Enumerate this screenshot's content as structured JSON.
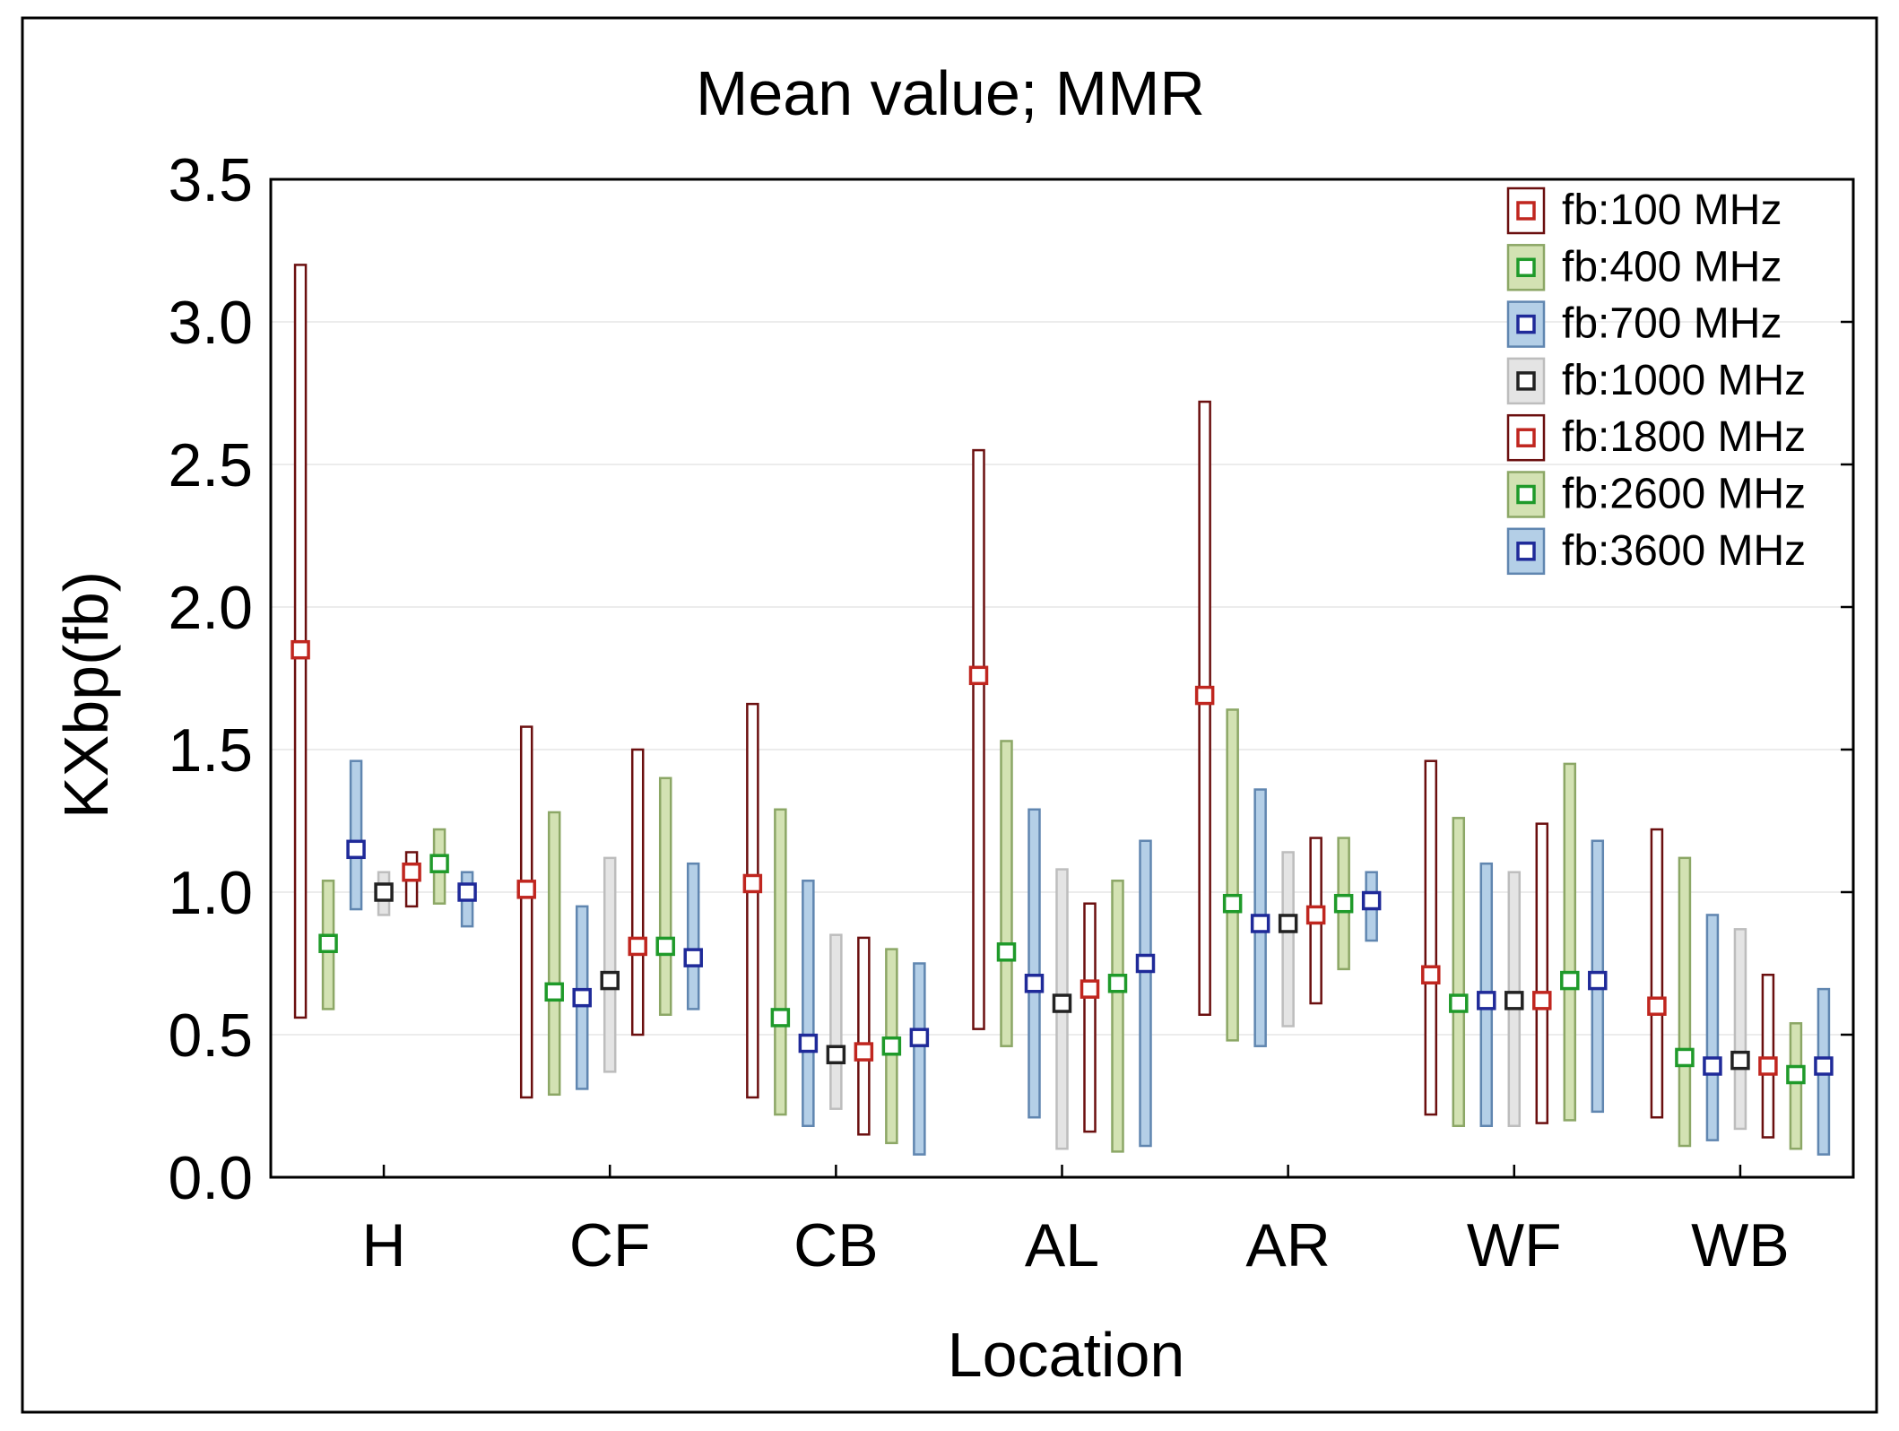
{
  "chart_data": {
    "type": "errorbar",
    "title": "Mean value; MMR",
    "xlabel": "Location",
    "ylabel": "KXbp(fb)",
    "ylim": [
      0,
      3.5
    ],
    "yticks": [
      "0.0",
      "0.5",
      "1.0",
      "1.5",
      "2.0",
      "2.5",
      "3.0",
      "3.5"
    ],
    "grid": true,
    "legend_position": "top-right",
    "categories": [
      "H",
      "CF",
      "CB",
      "AL",
      "AR",
      "WF",
      "WB"
    ],
    "series": [
      {
        "name": "fb:100 MHz",
        "bar_fill": "#ffffff",
        "bar_stroke": "#6b0f0f",
        "marker": "#c0261f",
        "mean": [
          1.85,
          1.01,
          1.03,
          1.76,
          1.69,
          0.71,
          0.6
        ],
        "low": [
          0.56,
          0.28,
          0.28,
          0.52,
          0.57,
          0.22,
          0.21
        ],
        "high": [
          3.2,
          1.58,
          1.66,
          2.55,
          2.72,
          1.46,
          1.22
        ]
      },
      {
        "name": "fb:400 MHz",
        "bar_fill": "#d3e2b3",
        "bar_stroke": "#8ca766",
        "marker": "#1f9a2a",
        "mean": [
          0.82,
          0.65,
          0.56,
          0.79,
          0.96,
          0.61,
          0.42
        ],
        "low": [
          0.59,
          0.29,
          0.22,
          0.46,
          0.48,
          0.18,
          0.11
        ],
        "high": [
          1.04,
          1.28,
          1.29,
          1.53,
          1.64,
          1.26,
          1.12
        ]
      },
      {
        "name": "fb:700 MHz",
        "bar_fill": "#b4cfe7",
        "bar_stroke": "#6086b0",
        "marker": "#1f2a99",
        "mean": [
          1.15,
          0.63,
          0.47,
          0.68,
          0.89,
          0.62,
          0.39
        ],
        "low": [
          0.94,
          0.31,
          0.18,
          0.21,
          0.46,
          0.18,
          0.13
        ],
        "high": [
          1.46,
          0.95,
          1.04,
          1.29,
          1.36,
          1.1,
          0.92
        ]
      },
      {
        "name": "fb:1000 MHz",
        "bar_fill": "#e4e4e4",
        "bar_stroke": "#bdbdbd",
        "marker": "#222222",
        "mean": [
          1.0,
          0.69,
          0.43,
          0.61,
          0.89,
          0.62,
          0.41
        ],
        "low": [
          0.92,
          0.37,
          0.24,
          0.1,
          0.53,
          0.18,
          0.17
        ],
        "high": [
          1.07,
          1.12,
          0.85,
          1.08,
          1.14,
          1.07,
          0.87
        ]
      },
      {
        "name": "fb:1800 MHz",
        "bar_fill": "#ffffff",
        "bar_stroke": "#6b0f0f",
        "marker": "#c0261f",
        "mean": [
          1.07,
          0.81,
          0.44,
          0.66,
          0.92,
          0.62,
          0.39
        ],
        "low": [
          0.95,
          0.5,
          0.15,
          0.16,
          0.61,
          0.19,
          0.14
        ],
        "high": [
          1.14,
          1.5,
          0.84,
          0.96,
          1.19,
          1.24,
          0.71
        ]
      },
      {
        "name": "fb:2600 MHz",
        "bar_fill": "#d3e2b3",
        "bar_stroke": "#8ca766",
        "marker": "#1f9a2a",
        "mean": [
          1.1,
          0.81,
          0.46,
          0.68,
          0.96,
          0.69,
          0.36
        ],
        "low": [
          0.96,
          0.57,
          0.12,
          0.09,
          0.73,
          0.2,
          0.1
        ],
        "high": [
          1.22,
          1.4,
          0.8,
          1.04,
          1.19,
          1.45,
          0.54
        ]
      },
      {
        "name": "fb:3600 MHz",
        "bar_fill": "#b4cfe7",
        "bar_stroke": "#6086b0",
        "marker": "#1f2a99",
        "mean": [
          1.0,
          0.77,
          0.49,
          0.75,
          0.97,
          0.69,
          0.39
        ],
        "low": [
          0.88,
          0.59,
          0.08,
          0.11,
          0.83,
          0.23,
          0.08
        ],
        "high": [
          1.07,
          1.1,
          0.75,
          1.18,
          1.07,
          1.18,
          0.66
        ]
      }
    ]
  }
}
